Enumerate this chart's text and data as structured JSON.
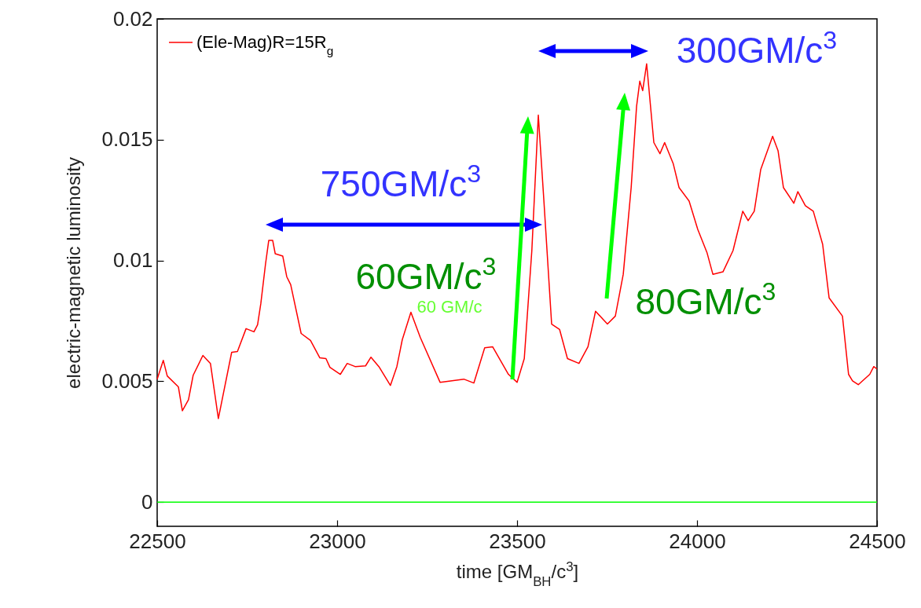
{
  "chart_data": {
    "type": "line",
    "xlabel": "time [GM$_{BH}$/c$^{3}$]",
    "ylabel": "electric-magnetic luminosity",
    "xlim": [
      22500,
      24500
    ],
    "xticks": [
      22500,
      23000,
      23500,
      24000,
      24500
    ],
    "ylim": [
      -0.001,
      0.02
    ],
    "yticks": [
      0,
      0.005,
      0.01,
      0.015,
      0.02
    ],
    "grid": false,
    "legend": "top left",
    "marker": "none",
    "line_style": "solid",
    "series": [
      {
        "name": "(Ele-Mag)R=15R$_{g}$",
        "color": "#ff0000",
        "x": [
          22500,
          22517,
          22528,
          22559,
          22570,
          22587,
          22600,
          22627,
          22648,
          22670,
          22707,
          22723,
          22747,
          22769,
          22779,
          22788,
          22801,
          22810,
          22821,
          22828,
          22849,
          22860,
          22871,
          22900,
          22926,
          22952,
          22969,
          22980,
          23009,
          23028,
          23050,
          23079,
          23094,
          23116,
          23148,
          23166,
          23181,
          23205,
          23231,
          23286,
          23352,
          23380,
          23410,
          23432,
          23476,
          23500,
          23520,
          23541,
          23559,
          23574,
          23596,
          23618,
          23640,
          23672,
          23697,
          23718,
          23751,
          23773,
          23795,
          23817,
          23832,
          23841,
          23849,
          23860,
          23880,
          23897,
          23910,
          23934,
          23950,
          23978,
          24002,
          24028,
          24044,
          24072,
          24100,
          24127,
          24142,
          24159,
          24177,
          24210,
          24225,
          24240,
          24269,
          24280,
          24301,
          24323,
          24349,
          24367,
          24404,
          24421,
          24432,
          24448,
          24480,
          24491,
          24500
        ],
        "values": [
          0.00509,
          0.00587,
          0.00522,
          0.00477,
          0.00378,
          0.00424,
          0.00525,
          0.00607,
          0.00574,
          0.00346,
          0.0062,
          0.00623,
          0.00718,
          0.00705,
          0.00734,
          0.00822,
          0.00985,
          0.01083,
          0.01083,
          0.01028,
          0.01018,
          0.00933,
          0.009,
          0.00698,
          0.00669,
          0.00597,
          0.00594,
          0.00558,
          0.00529,
          0.00574,
          0.00561,
          0.00564,
          0.006,
          0.00561,
          0.00483,
          0.00561,
          0.00672,
          0.00786,
          0.00682,
          0.00496,
          0.00509,
          0.00493,
          0.00639,
          0.00643,
          0.00529,
          0.00496,
          0.00594,
          0.01041,
          0.01602,
          0.01259,
          0.00737,
          0.00715,
          0.00594,
          0.00574,
          0.00643,
          0.0079,
          0.00737,
          0.0077,
          0.00943,
          0.01302,
          0.01638,
          0.01742,
          0.01703,
          0.01814,
          0.01488,
          0.01442,
          0.01488,
          0.014,
          0.01302,
          0.01246,
          0.01129,
          0.01031,
          0.00943,
          0.00953,
          0.01041,
          0.01204,
          0.01165,
          0.01204,
          0.01377,
          0.01514,
          0.01455,
          0.01302,
          0.01237,
          0.01285,
          0.01227,
          0.01204,
          0.01067,
          0.00845,
          0.0077,
          0.00529,
          0.00502,
          0.00486,
          0.00529,
          0.00561,
          0.00551
        ]
      }
    ],
    "ref_lines": [
      {
        "axis": "y",
        "value": 0,
        "color": "#00ff00"
      }
    ],
    "annotations": [
      "750GM/c$^{3}$",
      "300GM/c$^{3}$",
      "60GM/c$^{3}$",
      "80GM/c$^{3}$",
      "60 GM/c"
    ]
  }
}
